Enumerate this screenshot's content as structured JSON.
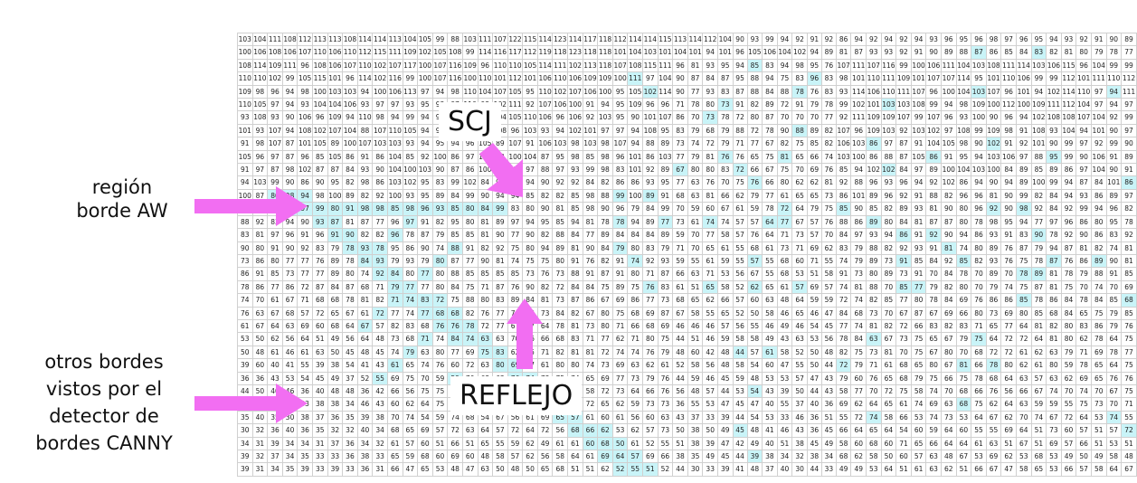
{
  "labels": {
    "region": "región\nborde AW",
    "others": "otros bordes\nvistos por el\ndetector de\nbordes CANNY",
    "scj": "SCJ",
    "reflejo": "REFLEJO"
  },
  "colors": {
    "arrow": "#f26ef2",
    "highlight": "#c9f4f8"
  },
  "grid": {
    "rows": 34,
    "cols": 60,
    "sample_rows": [
      [
        103,
        104,
        111,
        108,
        112,
        113,
        113,
        108,
        114,
        114,
        113,
        104,
        105,
        99,
        88,
        103,
        111,
        107,
        122,
        115,
        114,
        123,
        114,
        117,
        118,
        112,
        114,
        114,
        115,
        113,
        114,
        112,
        104,
        90,
        93,
        99,
        94,
        92,
        91,
        92,
        86,
        94,
        92,
        94,
        92,
        94,
        93,
        96,
        95,
        96,
        98,
        97,
        96,
        95,
        94,
        93,
        92,
        91,
        90,
        89
      ],
      [
        100,
        106,
        108,
        106,
        107,
        110,
        106,
        110,
        112,
        115,
        111,
        109,
        102,
        105,
        108,
        99,
        114,
        116,
        117,
        112,
        119,
        118,
        123,
        118,
        118,
        101,
        104,
        103,
        101,
        104,
        101,
        94,
        101,
        96,
        105,
        106,
        104,
        102,
        94,
        89,
        81,
        87,
        93,
        93,
        92,
        91,
        90,
        89,
        88,
        87,
        86,
        85,
        84,
        83,
        82,
        81,
        80,
        79,
        78,
        77
      ]
    ]
  }
}
